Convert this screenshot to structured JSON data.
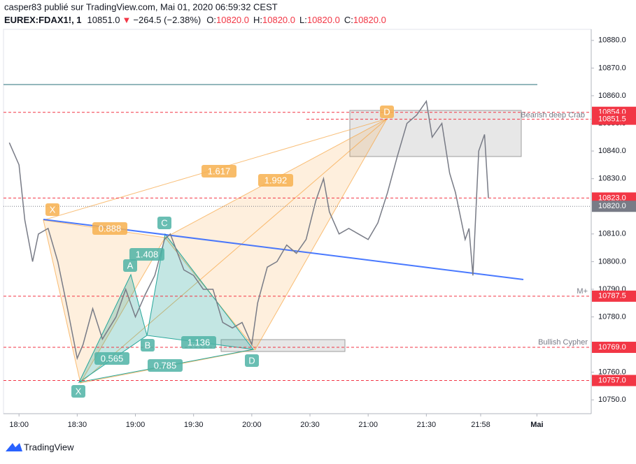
{
  "header": {
    "byline": "casper83 publié sur TradingView.com, Mai 01, 2020 06:59:32 CEST",
    "symbol": "EUREX:FDAX1!, 1",
    "price": "10851.0",
    "arrow": "▼",
    "change": "−264.5 (−2.38%)",
    "ohlc": [
      {
        "key": "O:",
        "value": "10820.0"
      },
      {
        "key": "H:",
        "value": "10820.0"
      },
      {
        "key": "L:",
        "value": "10820.0"
      },
      {
        "key": "C:",
        "value": "10820.0"
      }
    ]
  },
  "chart_data": {
    "type": "line",
    "color": "#787b86",
    "x": [
      "17:55",
      "18:00",
      "18:03",
      "18:07",
      "18:10",
      "18:15",
      "18:20",
      "18:25",
      "18:30",
      "18:33",
      "18:38",
      "18:43",
      "18:50",
      "18:55",
      "19:00",
      "19:05",
      "19:10",
      "19:15",
      "19:18",
      "19:25",
      "19:30",
      "19:35",
      "19:40",
      "19:45",
      "19:50",
      "19:55",
      "20:00",
      "20:03",
      "20:08",
      "20:13",
      "20:18",
      "20:23",
      "20:28",
      "20:33",
      "20:37",
      "20:40",
      "20:45",
      "20:50",
      "20:55",
      "21:00",
      "21:05",
      "21:10",
      "21:15",
      "21:20",
      "21:25",
      "21:30",
      "21:33",
      "21:38",
      "21:42",
      "21:45",
      "21:50",
      "21:52",
      "21:54",
      "21:57",
      "22:00",
      "22:02"
    ],
    "values": [
      10843,
      10835,
      10815,
      10800,
      10810,
      10812,
      10800,
      10783,
      10765,
      10770,
      10783,
      10772,
      10780,
      10790,
      10780,
      10788,
      10795,
      10808,
      10810,
      10797,
      10795,
      10790,
      10790,
      10778,
      10776,
      10778,
      10770,
      10785,
      10798,
      10800,
      10806,
      10803,
      10808,
      10822,
      10830,
      10818,
      10810,
      10812,
      10810,
      10808,
      10814,
      10825,
      10838,
      10850,
      10853,
      10858,
      10845,
      10850,
      10832,
      10825,
      10808,
      10812,
      10795,
      10840,
      10846,
      10823
    ],
    "xlim": [
      "17:52",
      "22:55"
    ],
    "xticks": [
      {
        "value": "18:00",
        "label": "18:00"
      },
      {
        "value": "18:30",
        "label": "18:30"
      },
      {
        "value": "19:00",
        "label": "19:00"
      },
      {
        "value": "19:30",
        "label": "19:30"
      },
      {
        "value": "20:00",
        "label": "20:00"
      },
      {
        "value": "20:30",
        "label": "20:30"
      },
      {
        "value": "21:00",
        "label": "21:00"
      },
      {
        "value": "21:30",
        "label": "21:30"
      },
      {
        "value": "21:58",
        "label": "21:58"
      },
      {
        "value": "22:27",
        "label": "Mai"
      }
    ],
    "ylim": [
      10745,
      10884
    ],
    "yticks": [
      {
        "value": 10880,
        "label": "10880.0"
      },
      {
        "value": 10870,
        "label": "10870.0"
      },
      {
        "value": 10860,
        "label": "10860.0"
      },
      {
        "value": 10850,
        "label": "10850.0"
      },
      {
        "value": 10840,
        "label": "10840.0"
      },
      {
        "value": 10830,
        "label": "10830.0"
      },
      {
        "value": 10810,
        "label": "10810.0"
      },
      {
        "value": 10800,
        "label": "10800.0"
      },
      {
        "value": 10790,
        "label": "10790.0"
      },
      {
        "value": 10780,
        "label": "10780.0"
      },
      {
        "value": 10760,
        "label": "10760.0"
      },
      {
        "value": 10750,
        "label": "10750.0"
      }
    ],
    "levels": [
      {
        "value": 10854,
        "label": "10854.0",
        "color": "#f23645"
      },
      {
        "value": 10851.5,
        "label": "10851.5",
        "color": "#f23645"
      },
      {
        "value": 10823,
        "label": "10823.0",
        "color": "#f23645"
      },
      {
        "value": 10820,
        "label": "10820.0",
        "color": "#787b86"
      },
      {
        "value": 10787.5,
        "label": "10787.5",
        "color": "#f23645"
      },
      {
        "value": 10769,
        "label": "10769.0",
        "color": "#f23645"
      },
      {
        "value": 10757,
        "label": "10757.0",
        "color": "#f23645"
      }
    ],
    "annotations": [
      "Bearish deep Crab",
      "M+",
      "Bullish Cypher"
    ],
    "crab_labels": [
      "X",
      "D"
    ],
    "crab_ratios": [
      "1.617",
      "1.992",
      "0.888"
    ],
    "cypher_labels": [
      "X",
      "A",
      "B",
      "C",
      "D"
    ],
    "cypher_ratios": [
      "1.408",
      "0.565",
      "1.136",
      "0.785"
    ]
  },
  "footer": {
    "brand": "TradingView"
  }
}
